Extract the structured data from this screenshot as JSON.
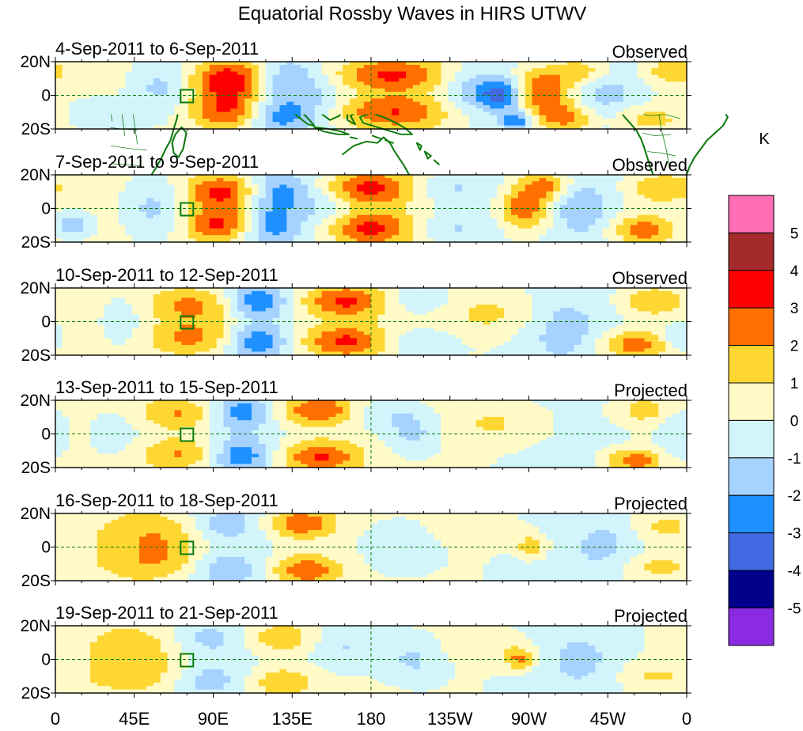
{
  "chart_data": {
    "type": "heatmap",
    "title": "Equatorial Rossby Waves in HIRS UTWV",
    "variable": "HIRS upper tropospheric water vapor anomaly filtered for equatorial Rossby waves",
    "units": "K",
    "x_ticks": [
      "0",
      "45E",
      "90E",
      "135E",
      "180",
      "135W",
      "90W",
      "45W",
      "0"
    ],
    "y_ticks": [
      "20N",
      "0",
      "20S"
    ],
    "colorbar": {
      "label": "K",
      "levels": [
        "5",
        "4",
        "3",
        "2",
        "1",
        "0",
        "-1",
        "-2",
        "-3",
        "-4",
        "-5"
      ],
      "colors": [
        "#ff6eb4",
        "#a52a2a",
        "#ff0000",
        "#ff7000",
        "#ffd733",
        "#fffac6",
        "#d2f5fb",
        "#a6d2ff",
        "#1e90ff",
        "#4169e1",
        "#00008b",
        "#8a2be2"
      ]
    },
    "panels": [
      {
        "date_range": "4-Sep-2011 to 6-Sep-2011",
        "kind": "Observed",
        "features": [
          {
            "lon": 100,
            "lat": 10,
            "value": 4.0,
            "wx": 16,
            "wy": 9
          },
          {
            "lon": 100,
            "lat": -10,
            "value": 3.6,
            "wx": 16,
            "wy": 9
          },
          {
            "lon": 125,
            "lat": -12,
            "value": -2.6,
            "wx": 14,
            "wy": 8
          },
          {
            "lon": 130,
            "lat": 10,
            "value": -1.8,
            "wx": 12,
            "wy": 8
          },
          {
            "lon": 60,
            "lat": 5,
            "value": -1.4,
            "wx": 12,
            "wy": 11
          },
          {
            "lon": 25,
            "lat": -12,
            "value": -1.2,
            "wx": 14,
            "wy": 8
          },
          {
            "lon": 192,
            "lat": 12,
            "value": 2.8,
            "wx": 26,
            "wy": 7
          },
          {
            "lon": 192,
            "lat": -10,
            "value": 2.6,
            "wx": 26,
            "wy": 7
          },
          {
            "lon": 237,
            "lat": 3,
            "value": -2.0,
            "wx": 14,
            "wy": 12
          },
          {
            "lon": 255,
            "lat": 0,
            "value": -3.2,
            "wx": 8,
            "wy": 6
          },
          {
            "lon": 263,
            "lat": -15,
            "value": -3.0,
            "wx": 6,
            "wy": 4
          },
          {
            "lon": 278,
            "lat": 2,
            "value": 3.2,
            "wx": 12,
            "wy": 10
          },
          {
            "lon": 292,
            "lat": -14,
            "value": 2.6,
            "wx": 12,
            "wy": 7
          },
          {
            "lon": 300,
            "lat": 14,
            "value": 2.2,
            "wx": 12,
            "wy": 6
          },
          {
            "lon": 335,
            "lat": -14,
            "value": 1.6,
            "wx": 14,
            "wy": 6
          },
          {
            "lon": 350,
            "lat": 14,
            "value": 1.4,
            "wx": 12,
            "wy": 6
          },
          {
            "lon": 150,
            "lat": -2,
            "value": -1.2,
            "wx": 14,
            "wy": 14
          },
          {
            "lon": 315,
            "lat": 0,
            "value": -1.2,
            "wx": 16,
            "wy": 14
          }
        ]
      },
      {
        "date_range": "7-Sep-2011 to 9-Sep-2011",
        "kind": "Observed",
        "features": [
          {
            "lon": 95,
            "lat": 10,
            "value": 3.6,
            "wx": 15,
            "wy": 8
          },
          {
            "lon": 95,
            "lat": -10,
            "value": 3.6,
            "wx": 15,
            "wy": 8
          },
          {
            "lon": 122,
            "lat": -10,
            "value": -2.6,
            "wx": 13,
            "wy": 8
          },
          {
            "lon": 128,
            "lat": 10,
            "value": -2.2,
            "wx": 12,
            "wy": 8
          },
          {
            "lon": 55,
            "lat": 0,
            "value": -1.4,
            "wx": 12,
            "wy": 12
          },
          {
            "lon": 10,
            "lat": -10,
            "value": -2.0,
            "wx": 8,
            "wy": 6
          },
          {
            "lon": 178,
            "lat": 12,
            "value": 3.2,
            "wx": 20,
            "wy": 7
          },
          {
            "lon": 178,
            "lat": -12,
            "value": 3.2,
            "wx": 20,
            "wy": 7
          },
          {
            "lon": 225,
            "lat": 12,
            "value": -1.4,
            "wx": 18,
            "wy": 7
          },
          {
            "lon": 225,
            "lat": -12,
            "value": -1.4,
            "wx": 18,
            "wy": 7
          },
          {
            "lon": 268,
            "lat": 0,
            "value": 3.0,
            "wx": 10,
            "wy": 10
          },
          {
            "lon": 280,
            "lat": 14,
            "value": 2.4,
            "wx": 10,
            "wy": 6
          },
          {
            "lon": 300,
            "lat": 0,
            "value": -1.6,
            "wx": 10,
            "wy": 10
          },
          {
            "lon": 335,
            "lat": -13,
            "value": 2.6,
            "wx": 12,
            "wy": 6
          },
          {
            "lon": 345,
            "lat": 12,
            "value": 1.8,
            "wx": 12,
            "wy": 6
          },
          {
            "lon": 155,
            "lat": 0,
            "value": -1.2,
            "wx": 12,
            "wy": 14
          }
        ]
      },
      {
        "date_range": "10-Sep-2011 to 12-Sep-2011",
        "kind": "Observed",
        "features": [
          {
            "lon": 80,
            "lat": 10,
            "value": 2.4,
            "wx": 20,
            "wy": 8
          },
          {
            "lon": 80,
            "lat": -10,
            "value": 2.4,
            "wx": 20,
            "wy": 8
          },
          {
            "lon": 115,
            "lat": 12,
            "value": -2.8,
            "wx": 12,
            "wy": 7
          },
          {
            "lon": 115,
            "lat": -12,
            "value": -2.8,
            "wx": 12,
            "wy": 7
          },
          {
            "lon": 40,
            "lat": 0,
            "value": -1.0,
            "wx": 12,
            "wy": 14
          },
          {
            "lon": 165,
            "lat": 12,
            "value": 3.2,
            "wx": 18,
            "wy": 7
          },
          {
            "lon": 165,
            "lat": -12,
            "value": 3.2,
            "wx": 18,
            "wy": 7
          },
          {
            "lon": 205,
            "lat": 13,
            "value": -1.3,
            "wx": 18,
            "wy": 7
          },
          {
            "lon": 205,
            "lat": -13,
            "value": -1.3,
            "wx": 18,
            "wy": 7
          },
          {
            "lon": 250,
            "lat": 5,
            "value": 1.3,
            "wx": 20,
            "wy": 10
          },
          {
            "lon": 290,
            "lat": -5,
            "value": -1.2,
            "wx": 14,
            "wy": 12
          },
          {
            "lon": 330,
            "lat": -14,
            "value": 2.6,
            "wx": 14,
            "wy": 6
          },
          {
            "lon": 340,
            "lat": 12,
            "value": 1.8,
            "wx": 12,
            "wy": 6
          },
          {
            "lon": 355,
            "lat": -10,
            "value": -1.6,
            "wx": 6,
            "wy": 6
          }
        ]
      },
      {
        "date_range": "13-Sep-2011 to 15-Sep-2011",
        "kind": "Projected",
        "features": [
          {
            "lon": 72,
            "lat": 12,
            "value": 2.2,
            "wx": 18,
            "wy": 7
          },
          {
            "lon": 72,
            "lat": -12,
            "value": 2.2,
            "wx": 18,
            "wy": 7
          },
          {
            "lon": 105,
            "lat": 13,
            "value": -2.4,
            "wx": 12,
            "wy": 7
          },
          {
            "lon": 105,
            "lat": -13,
            "value": -2.6,
            "wx": 12,
            "wy": 7
          },
          {
            "lon": 35,
            "lat": 0,
            "value": -0.9,
            "wx": 14,
            "wy": 14
          },
          {
            "lon": 150,
            "lat": 14,
            "value": 3.2,
            "wx": 16,
            "wy": 7
          },
          {
            "lon": 150,
            "lat": -14,
            "value": 3.2,
            "wx": 16,
            "wy": 7
          },
          {
            "lon": 185,
            "lat": 12,
            "value": -1.2,
            "wx": 16,
            "wy": 7
          },
          {
            "lon": 205,
            "lat": 0,
            "value": -1.6,
            "wx": 12,
            "wy": 10
          },
          {
            "lon": 255,
            "lat": 6,
            "value": 1.2,
            "wx": 22,
            "wy": 10
          },
          {
            "lon": 330,
            "lat": -16,
            "value": 2.6,
            "wx": 12,
            "wy": 5
          },
          {
            "lon": 335,
            "lat": 14,
            "value": 1.5,
            "wx": 12,
            "wy": 6
          },
          {
            "lon": 355,
            "lat": 0,
            "value": -1.2,
            "wx": 8,
            "wy": 12
          }
        ]
      },
      {
        "date_range": "16-Sep-2011 to 18-Sep-2011",
        "kind": "Projected",
        "features": [
          {
            "lon": 60,
            "lat": 8,
            "value": 1.8,
            "wx": 22,
            "wy": 10
          },
          {
            "lon": 60,
            "lat": -10,
            "value": 1.6,
            "wx": 22,
            "wy": 8
          },
          {
            "lon": 95,
            "lat": 13,
            "value": -1.6,
            "wx": 14,
            "wy": 7
          },
          {
            "lon": 95,
            "lat": -13,
            "value": -1.8,
            "wx": 14,
            "wy": 7
          },
          {
            "lon": 140,
            "lat": 14,
            "value": 3.0,
            "wx": 14,
            "wy": 7
          },
          {
            "lon": 142,
            "lat": -14,
            "value": 3.0,
            "wx": 14,
            "wy": 7
          },
          {
            "lon": 200,
            "lat": 0,
            "value": -1.5,
            "wx": 16,
            "wy": 12
          },
          {
            "lon": 240,
            "lat": 10,
            "value": 0.8,
            "wx": 22,
            "wy": 8
          },
          {
            "lon": 272,
            "lat": 0,
            "value": 2.0,
            "wx": 6,
            "wy": 5
          },
          {
            "lon": 315,
            "lat": 0,
            "value": -1.0,
            "wx": 14,
            "wy": 12
          },
          {
            "lon": 340,
            "lat": -12,
            "value": 1.2,
            "wx": 14,
            "wy": 6
          },
          {
            "lon": 345,
            "lat": 12,
            "value": 1.1,
            "wx": 12,
            "wy": 6
          }
        ]
      },
      {
        "date_range": "19-Sep-2011 to 21-Sep-2011",
        "kind": "Projected",
        "features": [
          {
            "lon": 50,
            "lat": 8,
            "value": 1.2,
            "wx": 22,
            "wy": 10
          },
          {
            "lon": 50,
            "lat": -10,
            "value": 1.2,
            "wx": 22,
            "wy": 8
          },
          {
            "lon": 85,
            "lat": 12,
            "value": -1.3,
            "wx": 14,
            "wy": 7
          },
          {
            "lon": 85,
            "lat": -12,
            "value": -1.4,
            "wx": 14,
            "wy": 7
          },
          {
            "lon": 128,
            "lat": 13,
            "value": 2.2,
            "wx": 14,
            "wy": 7
          },
          {
            "lon": 130,
            "lat": -14,
            "value": 2.2,
            "wx": 14,
            "wy": 7
          },
          {
            "lon": 168,
            "lat": 8,
            "value": -1.2,
            "wx": 14,
            "wy": 10
          },
          {
            "lon": 205,
            "lat": 0,
            "value": -1.6,
            "wx": 14,
            "wy": 12
          },
          {
            "lon": 245,
            "lat": 8,
            "value": 0.8,
            "wx": 20,
            "wy": 8
          },
          {
            "lon": 265,
            "lat": 0,
            "value": 2.2,
            "wx": 6,
            "wy": 5
          },
          {
            "lon": 300,
            "lat": 0,
            "value": -0.9,
            "wx": 14,
            "wy": 12
          },
          {
            "lon": 340,
            "lat": -10,
            "value": 1.0,
            "wx": 14,
            "wy": 6
          }
        ]
      }
    ]
  }
}
